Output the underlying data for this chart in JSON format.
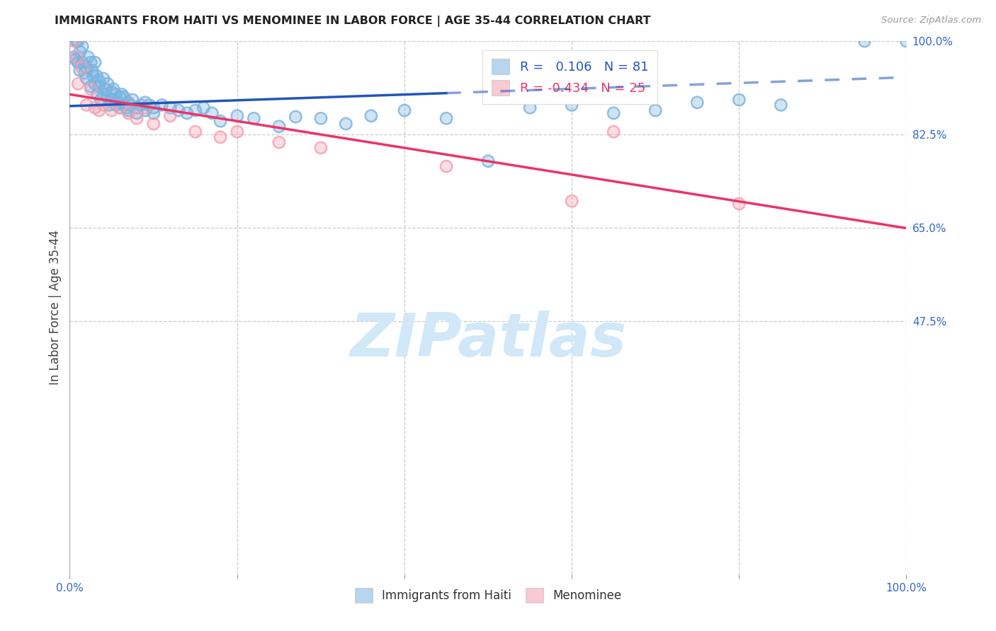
{
  "title": "IMMIGRANTS FROM HAITI VS MENOMINEE IN LABOR FORCE | AGE 35-44 CORRELATION CHART",
  "source": "Source: ZipAtlas.com",
  "ylabel": "In Labor Force | Age 35-44",
  "x_min": 0.0,
  "x_max": 1.0,
  "y_min": 0.0,
  "y_max": 1.0,
  "y_ticks": [
    0.475,
    0.65,
    0.825,
    1.0
  ],
  "y_tick_labels": [
    "47.5%",
    "65.0%",
    "82.5%",
    "100.0%"
  ],
  "x_ticks": [
    0.0,
    0.2,
    0.4,
    0.6,
    0.8,
    1.0
  ],
  "x_tick_labels": [
    "0.0%",
    "",
    "",
    "",
    "",
    "100.0%"
  ],
  "haiti_R": 0.106,
  "haiti_N": 81,
  "menominee_R": -0.434,
  "menominee_N": 25,
  "haiti_color": "#7ab3e0",
  "menominee_color": "#f4a0b0",
  "haiti_trend_color": "#2255bb",
  "menominee_trend_color": "#ee3366",
  "watermark_text": "ZIPatlas",
  "watermark_color": "#d0e8f8",
  "bg_color": "#ffffff",
  "grid_color": "#cccccc",
  "title_color": "#222222",
  "source_color": "#999999",
  "tick_color": "#3366cc",
  "ylabel_color": "#444444",
  "haiti_trend_start_x": 0.0,
  "haiti_trend_end_solid_x": 0.45,
  "haiti_trend_end_x": 1.0,
  "haiti_trend_start_y": 0.878,
  "haiti_trend_end_y": 0.932,
  "menominee_trend_start_x": 0.0,
  "menominee_trend_end_x": 1.0,
  "menominee_trend_start_y": 0.9,
  "menominee_trend_end_y": 0.649,
  "haiti_x": [
    0.005,
    0.007,
    0.008,
    0.01,
    0.01,
    0.012,
    0.012,
    0.015,
    0.015,
    0.018,
    0.02,
    0.02,
    0.022,
    0.025,
    0.025,
    0.027,
    0.028,
    0.03,
    0.03,
    0.032,
    0.033,
    0.035,
    0.035,
    0.037,
    0.04,
    0.04,
    0.042,
    0.045,
    0.045,
    0.047,
    0.05,
    0.05,
    0.052,
    0.055,
    0.055,
    0.058,
    0.06,
    0.06,
    0.062,
    0.065,
    0.065,
    0.068,
    0.07,
    0.07,
    0.072,
    0.075,
    0.08,
    0.08,
    0.085,
    0.09,
    0.09,
    0.095,
    0.1,
    0.1,
    0.11,
    0.12,
    0.13,
    0.14,
    0.15,
    0.16,
    0.17,
    0.18,
    0.2,
    0.22,
    0.25,
    0.27,
    0.3,
    0.33,
    0.36,
    0.4,
    0.45,
    0.5,
    0.55,
    0.6,
    0.65,
    0.7,
    0.75,
    0.8,
    0.85,
    0.95,
    1.0
  ],
  "haiti_y": [
    0.97,
    0.965,
    1.0,
    1.0,
    0.96,
    0.98,
    0.945,
    0.99,
    0.96,
    0.94,
    0.95,
    0.93,
    0.97,
    0.96,
    0.915,
    0.945,
    0.935,
    0.96,
    0.92,
    0.935,
    0.9,
    0.925,
    0.915,
    0.89,
    0.93,
    0.9,
    0.91,
    0.895,
    0.92,
    0.88,
    0.905,
    0.89,
    0.91,
    0.88,
    0.9,
    0.885,
    0.895,
    0.875,
    0.9,
    0.88,
    0.895,
    0.875,
    0.885,
    0.87,
    0.88,
    0.89,
    0.875,
    0.865,
    0.88,
    0.885,
    0.87,
    0.88,
    0.875,
    0.865,
    0.88,
    0.875,
    0.87,
    0.865,
    0.87,
    0.875,
    0.865,
    0.85,
    0.86,
    0.855,
    0.84,
    0.858,
    0.855,
    0.845,
    0.86,
    0.87,
    0.855,
    0.775,
    0.875,
    0.88,
    0.865,
    0.87,
    0.885,
    0.89,
    0.88,
    1.0,
    1.0
  ],
  "menominee_x": [
    0.005,
    0.008,
    0.01,
    0.015,
    0.02,
    0.025,
    0.03,
    0.035,
    0.04,
    0.05,
    0.06,
    0.07,
    0.08,
    0.09,
    0.1,
    0.12,
    0.15,
    0.18,
    0.2,
    0.25,
    0.3,
    0.45,
    0.6,
    0.65,
    0.8
  ],
  "menominee_y": [
    1.0,
    0.97,
    0.92,
    0.95,
    0.88,
    0.91,
    0.875,
    0.87,
    0.88,
    0.87,
    0.875,
    0.865,
    0.855,
    0.875,
    0.845,
    0.86,
    0.83,
    0.82,
    0.83,
    0.81,
    0.8,
    0.765,
    0.7,
    0.83,
    0.695
  ]
}
